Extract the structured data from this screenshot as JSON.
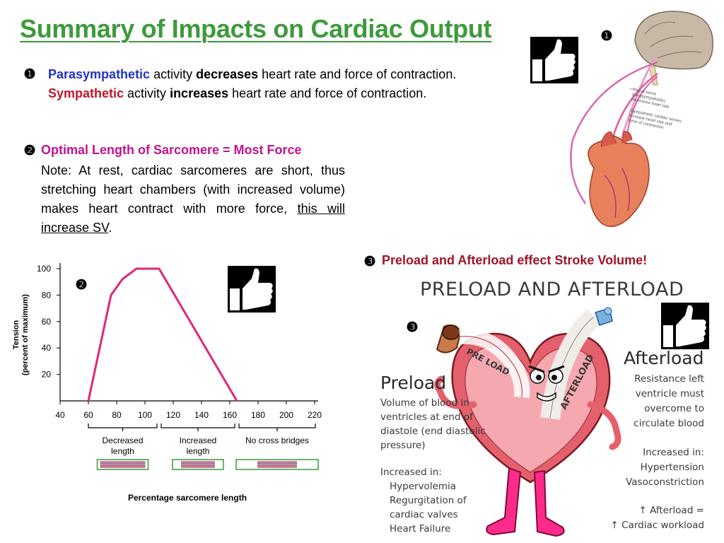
{
  "title": "Summary of Impacts on Cardiac Output",
  "markers": {
    "one": "❶",
    "two": "❷",
    "three": "❸"
  },
  "section1": {
    "line1": {
      "strong": "Parasympathetic",
      "mid": " activity ",
      "verb": "decreases",
      "rest": " heart rate and force of contraction."
    },
    "line2": {
      "strong": "Sympathetic",
      "mid": " activity ",
      "verb": "increases",
      "rest": " heart rate and force of contraction."
    }
  },
  "section2": {
    "heading": "Optimal Length of Sarcomere = Most Force",
    "note": "Note: At rest, cardiac sarcomeres are short, thus stretching heart chambers (with increased volume) makes heart contract with more force, ",
    "note_link": "this will increase SV",
    "note_end": "."
  },
  "section3": {
    "heading": "Preload and Afterload effect Stroke Volume!"
  },
  "nerve_figure": {
    "vagus_label": [
      "Vagus nerve",
      "(parasympathetic)",
      "decreases heart rate"
    ],
    "symp_label": [
      "Sympathetic cardiac nerves",
      "increase heart rate and",
      "force of contraction"
    ]
  },
  "chart_data": {
    "type": "line",
    "title": "",
    "ylabel": [
      "Tension",
      "(percent of maximum)"
    ],
    "xlabel": "Percentage sarcomere length",
    "xlim": [
      40,
      225
    ],
    "ylim": [
      0,
      100
    ],
    "x_ticks": [
      40,
      60,
      80,
      100,
      120,
      140,
      160,
      180,
      200,
      220
    ],
    "y_ticks": [
      20,
      40,
      60,
      80,
      100
    ],
    "series": [
      {
        "name": "Tension",
        "x": [
          60,
          76,
          84,
          94,
          110,
          165
        ],
        "y": [
          0,
          80,
          92,
          100,
          100,
          0
        ]
      }
    ],
    "regions": [
      {
        "label": [
          "Decreased",
          "length"
        ],
        "from": 60,
        "to": 110
      },
      {
        "label": [
          "Increased",
          "length"
        ],
        "from": 110,
        "to": 165
      },
      {
        "label": [
          "No cross bridges"
        ],
        "from": 165,
        "to": 225
      }
    ],
    "color": "#e0267a"
  },
  "cartoon": {
    "title": "PRELOAD AND AFTERLOAD",
    "preload_on_heart": "PRE LOAD",
    "afterload_on_heart": "AFTERLOAD",
    "preload": {
      "heading": "Preload",
      "desc": [
        "Volume of blood in",
        "ventricles at end of",
        "diastole (end diastolic",
        "pressure)"
      ],
      "increased_heading": "Increased in:",
      "increased": [
        "Hypervolemia",
        "Regurgitation of",
        "cardiac valves",
        "Heart Failure"
      ]
    },
    "afterload": {
      "heading": "Afterload",
      "desc": [
        "Resistance left",
        "ventricle must",
        "overcome to",
        "circulate blood"
      ],
      "increased_heading": "Increased in:",
      "increased": [
        "Hypertension",
        "Vasoconstriction"
      ],
      "result": [
        "↑ Afterload =",
        "↑ Cardiac workload"
      ]
    }
  },
  "colors": {
    "title": "#3e9a3c",
    "parasympathetic": "#2233c0",
    "sympathetic": "#c0152a",
    "optimal": "#c0148e",
    "preload_heading": "#a01428",
    "curve": "#e0267a"
  }
}
